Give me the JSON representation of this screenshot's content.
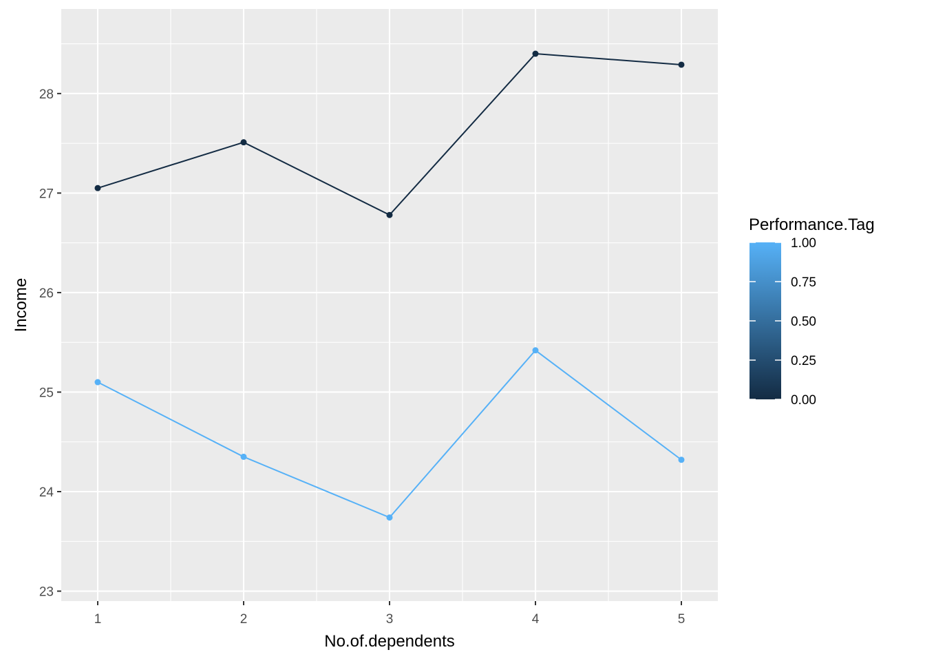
{
  "chart_data": {
    "type": "line",
    "title": "",
    "xlabel": "No.of.dependents",
    "ylabel": "Income",
    "x": [
      1,
      2,
      3,
      4,
      5
    ],
    "xlim": [
      0.75,
      5.25
    ],
    "ylim": [
      22.9,
      28.85
    ],
    "x_ticks": [
      1,
      2,
      3,
      4,
      5
    ],
    "y_ticks": [
      23,
      24,
      25,
      26,
      27,
      28
    ],
    "grid": true,
    "legend_position": "right",
    "series": [
      {
        "tag": 0,
        "color": "#132B43",
        "values": [
          27.05,
          27.51,
          26.78,
          28.4,
          28.29
        ]
      },
      {
        "tag": 1,
        "color": "#56B1F7",
        "values": [
          25.1,
          24.35,
          23.74,
          25.42,
          24.32
        ]
      }
    ],
    "legend": {
      "title": "Performance.Tag",
      "gradient": [
        "#132B43",
        "#56B1F7"
      ],
      "breaks": [
        {
          "value": 1.0,
          "label": "1.00"
        },
        {
          "value": 0.75,
          "label": "0.75"
        },
        {
          "value": 0.5,
          "label": "0.50"
        },
        {
          "value": 0.25,
          "label": "0.25"
        },
        {
          "value": 0.0,
          "label": "0.00"
        }
      ]
    }
  }
}
